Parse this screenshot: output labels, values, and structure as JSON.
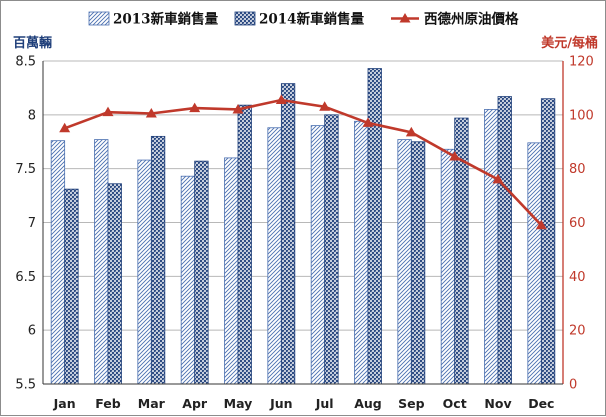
{
  "chart_data": {
    "type": "bar",
    "categories": [
      "Jan",
      "Feb",
      "Mar",
      "Apr",
      "May",
      "Jun",
      "Jul",
      "Aug",
      "Sep",
      "Oct",
      "Nov",
      "Dec"
    ],
    "series": [
      {
        "name": "2013新車銷售量",
        "type": "bar",
        "axis": "left",
        "color": "#4a6fb0",
        "pattern": "diagonal-hatch",
        "values": [
          7.76,
          7.77,
          7.58,
          7.43,
          7.6,
          7.88,
          7.9,
          7.94,
          7.77,
          7.68,
          8.05,
          7.74
        ]
      },
      {
        "name": "2014新車銷售量",
        "type": "bar",
        "axis": "left",
        "color": "#1f3f7a",
        "pattern": "crosshatch",
        "values": [
          7.31,
          7.36,
          7.8,
          7.57,
          8.09,
          8.29,
          8.0,
          8.43,
          7.75,
          7.97,
          8.17,
          8.15
        ]
      },
      {
        "name": "西德州原油價格",
        "type": "line",
        "axis": "right",
        "color": "#c0392b",
        "marker": "triangle",
        "values": [
          95,
          101,
          100.5,
          102.5,
          102,
          105.5,
          103,
          97,
          93.5,
          84.5,
          76,
          59
        ]
      }
    ],
    "ylabel_left": "百萬輛",
    "ylabel_right": "美元/每桶",
    "ylim_left": [
      5.5,
      8.5
    ],
    "ylim_right": [
      0,
      120
    ],
    "yticks_left": [
      "5.5",
      "6",
      "6.5",
      "7",
      "7.5",
      "8",
      "8.5"
    ],
    "yticks_right": [
      "0",
      "20",
      "40",
      "60",
      "80",
      "100",
      "120"
    ],
    "grid": "horizontal",
    "legend": "top"
  }
}
